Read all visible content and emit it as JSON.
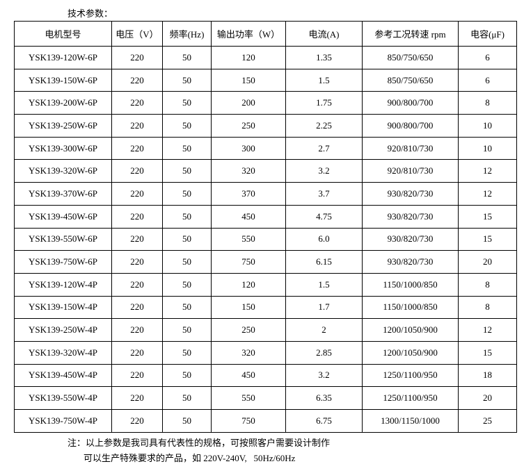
{
  "header": {
    "title": "技术参数："
  },
  "table": {
    "columns": [
      "电机型号",
      "电压（V）",
      "频率(Hz)",
      "输出功率（W）",
      "电流(A)",
      "参考工况转速 rpm",
      "电容(μF)"
    ],
    "rows": [
      [
        "YSK139-120W-6P",
        "220",
        "50",
        "120",
        "1.35",
        "850/750/650",
        "6"
      ],
      [
        "YSK139-150W-6P",
        "220",
        "50",
        "150",
        "1.5",
        "850/750/650",
        "6"
      ],
      [
        "YSK139-200W-6P",
        "220",
        "50",
        "200",
        "1.75",
        "900/800/700",
        "8"
      ],
      [
        "YSK139-250W-6P",
        "220",
        "50",
        "250",
        "2.25",
        "900/800/700",
        "10"
      ],
      [
        "YSK139-300W-6P",
        "220",
        "50",
        "300",
        "2.7",
        "920/810/730",
        "10"
      ],
      [
        "YSK139-320W-6P",
        "220",
        "50",
        "320",
        "3.2",
        "920/810/730",
        "12"
      ],
      [
        "YSK139-370W-6P",
        "220",
        "50",
        "370",
        "3.7",
        "930/820/730",
        "12"
      ],
      [
        "YSK139-450W-6P",
        "220",
        "50",
        "450",
        "4.75",
        "930/820/730",
        "15"
      ],
      [
        "YSK139-550W-6P",
        "220",
        "50",
        "550",
        "6.0",
        "930/820/730",
        "15"
      ],
      [
        "YSK139-750W-6P",
        "220",
        "50",
        "750",
        "6.15",
        "930/820/730",
        "20"
      ],
      [
        "YSK139-120W-4P",
        "220",
        "50",
        "120",
        "1.5",
        "1150/1000/850",
        "8"
      ],
      [
        "YSK139-150W-4P",
        "220",
        "50",
        "150",
        "1.7",
        "1150/1000/850",
        "8"
      ],
      [
        "YSK139-250W-4P",
        "220",
        "50",
        "250",
        "2",
        "1200/1050/900",
        "12"
      ],
      [
        "YSK139-320W-4P",
        "220",
        "50",
        "320",
        "2.85",
        "1200/1050/900",
        "15"
      ],
      [
        "YSK139-450W-4P",
        "220",
        "50",
        "450",
        "3.2",
        "1250/1100/950",
        "18"
      ],
      [
        "YSK139-550W-4P",
        "220",
        "50",
        "550",
        "6.35",
        "1250/1100/950",
        "20"
      ],
      [
        "YSK139-750W-4P",
        "220",
        "50",
        "750",
        "6.75",
        "1300/1150/1000",
        "25"
      ]
    ]
  },
  "notes": [
    "注：以上参数是我司具有代表性的规格，可按照客户需要设计制作",
    "可以生产特殊要求的产品，如 220V-240V,   50Hz/60Hz"
  ]
}
